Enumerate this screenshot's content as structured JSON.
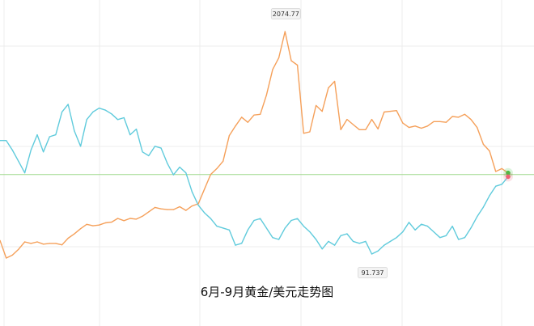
{
  "chart_data": {
    "type": "line",
    "title": "6月-9月黄金/美元走势图",
    "xlabel": "",
    "ylabel": "",
    "grid": true,
    "annotations": {
      "gold_high_label": "2074.77",
      "usd_low_label": "91.737"
    },
    "series": [
      {
        "name": "",
        "color": "#f5a05a",
        "values": [
          1790,
          1766,
          1770,
          1778,
          1788,
          1786,
          1788,
          1785,
          1786,
          1786,
          1784,
          1793,
          1799,
          1806,
          1812,
          1810,
          1811,
          1814,
          1815,
          1820,
          1817,
          1820,
          1819,
          1823,
          1829,
          1835,
          1833,
          1832,
          1832,
          1836,
          1831,
          1837,
          1840,
          1860,
          1880,
          1888,
          1898,
          1933,
          1946,
          1958,
          1951,
          1961,
          1962,
          1988,
          2023,
          2039,
          2074.77,
          2035,
          2029,
          1936,
          1938,
          1974,
          1966,
          1998,
          2007,
          1941,
          1955,
          1948,
          1941,
          1941,
          1955,
          1942,
          1965,
          1966,
          1967,
          1950,
          1944,
          1946,
          1943,
          1946,
          1952,
          1952,
          1951,
          1959,
          1958,
          1962,
          1955,
          1944,
          1921,
          1912,
          1884,
          1888,
          1882
        ]
      },
      {
        "name": "",
        "color": "#60cbdc",
        "values": [
          97.7,
          97.7,
          97.2,
          96.6,
          96.0,
          97.2,
          98.0,
          97.1,
          97.9,
          98.0,
          99.2,
          99.6,
          98.2,
          97.4,
          98.8,
          99.2,
          99.4,
          99.3,
          99.1,
          98.8,
          98.9,
          98.0,
          98.3,
          97.1,
          96.9,
          97.4,
          97.3,
          96.5,
          95.9,
          96.3,
          96.0,
          95.0,
          94.3,
          93.9,
          93.6,
          93.2,
          93.1,
          93.0,
          92.2,
          92.3,
          93.0,
          93.5,
          93.6,
          93.1,
          92.6,
          92.5,
          93.1,
          93.5,
          93.6,
          93.2,
          92.9,
          92.5,
          92.0,
          92.4,
          92.2,
          92.7,
          92.8,
          92.4,
          92.3,
          92.4,
          91.737,
          91.9,
          92.2,
          92.4,
          92.6,
          92.9,
          93.4,
          93.0,
          93.3,
          93.2,
          92.9,
          92.6,
          92.7,
          93.2,
          92.5,
          92.6,
          93.1,
          93.7,
          94.2,
          94.8,
          95.3,
          95.4,
          95.8
        ]
      }
    ]
  },
  "reference_lines": [
    {
      "series_index": 0,
      "color": "#9ed98a"
    }
  ],
  "end_markers": [
    {
      "series_index": 0,
      "color": "#37c43c"
    },
    {
      "series_index": 1,
      "color": "#f06075"
    }
  ]
}
